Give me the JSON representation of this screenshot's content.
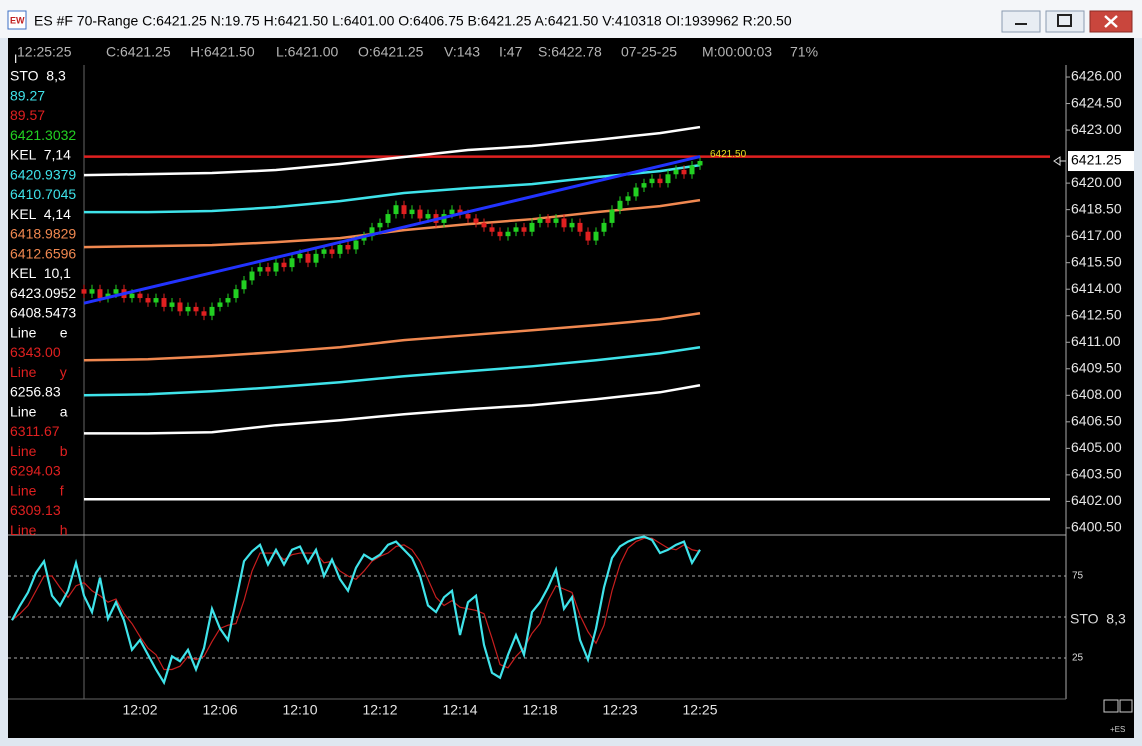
{
  "window": {
    "title": "ES #F 70-Range C:6421.25 N:19.75 H:6421.50 L:6401.00 O:6406.75 B:6421.25 A:6421.50 V:410318 OI:1939962 R:20.50"
  },
  "info_bar": [
    "12:25:25",
    "C:6421.25",
    "H:6421.50",
    "L:6421.00",
    "O:6421.25",
    "V:143",
    "I:47",
    "S:6422.78",
    "07-25-25",
    "M:00:00:03",
    "71%"
  ],
  "indicator_panel": [
    {
      "text": "STO  8,3",
      "color": "#ffffff"
    },
    {
      "text": "89.27",
      "color": "#3fe3ea"
    },
    {
      "text": "89.57",
      "color": "#e02020"
    },
    {
      "text": "6421.3032",
      "color": "#22d022"
    },
    {
      "text": "KEL  7,14",
      "color": "#ffffff"
    },
    {
      "text": "6420.9379",
      "color": "#3fe3ea"
    },
    {
      "text": "6410.7045",
      "color": "#3fe3ea"
    },
    {
      "text": "KEL  4,14",
      "color": "#ffffff"
    },
    {
      "text": "6418.9829",
      "color": "#f08850"
    },
    {
      "text": "6412.6596",
      "color": "#f08850"
    },
    {
      "text": "KEL  10,1",
      "color": "#ffffff"
    },
    {
      "text": "6423.0952",
      "color": "#ffffff"
    },
    {
      "text": "6408.5473",
      "color": "#ffffff"
    },
    {
      "text": "Line      e",
      "color": "#ffffff"
    },
    {
      "text": "6343.00",
      "color": "#e02020"
    },
    {
      "text": "Line      y",
      "color": "#e02020"
    },
    {
      "text": "6256.83",
      "color": "#ffffff"
    },
    {
      "text": "Line      a",
      "color": "#ffffff"
    },
    {
      "text": "6311.67",
      "color": "#e02020"
    },
    {
      "text": "Line      b",
      "color": "#e02020"
    },
    {
      "text": "6294.03",
      "color": "#e02020"
    },
    {
      "text": "Line      f",
      "color": "#e02020"
    },
    {
      "text": "6309.13",
      "color": "#e02020"
    },
    {
      "text": "Line      h",
      "color": "#e02020"
    }
  ],
  "chart_data": [
    {
      "type": "candlestick",
      "categories": [
        null,
        null,
        null,
        null,
        null,
        null,
        null,
        null,
        null,
        null,
        null,
        null,
        null,
        null,
        null,
        null,
        "12:02",
        null,
        null,
        null,
        null,
        null,
        null,
        null,
        null,
        null,
        "12:06",
        null,
        null,
        null,
        null,
        null,
        null,
        null,
        null,
        null,
        "12:10",
        null,
        null,
        null,
        null,
        null,
        null,
        null,
        null,
        null,
        "12:12",
        null,
        null,
        null,
        null,
        null,
        null,
        null,
        null,
        null,
        "12:14",
        null,
        null,
        null,
        null,
        null,
        null,
        null,
        null,
        null,
        "12:18",
        null,
        null,
        null,
        null,
        null,
        null,
        null,
        null,
        null,
        "12:23",
        null,
        null,
        null,
        null,
        null,
        null,
        null,
        null,
        null,
        "12:25"
      ],
      "open": [
        null,
        null,
        null,
        null,
        null,
        null,
        null,
        null,
        null,
        6414.0,
        6413.75,
        6414.0,
        6413.5,
        6413.75,
        6414.0,
        6413.5,
        6413.75,
        6413.5,
        6413.25,
        6413.5,
        6413.0,
        6413.25,
        6412.75,
        6413.0,
        6412.75,
        6412.5,
        6413.0,
        6413.25,
        6413.5,
        6414.0,
        6414.5,
        6415.0,
        6415.25,
        6415.0,
        6415.5,
        6415.25,
        6415.75,
        6416.0,
        6415.5,
        6416.0,
        6416.25,
        6416.0,
        6416.5,
        6416.25,
        6416.75,
        6417.0,
        6417.5,
        6417.75,
        6418.25,
        6418.75,
        6418.25,
        6418.5,
        6418.0,
        6418.25,
        6417.75,
        6418.25,
        6418.5,
        6418.25,
        6418.0,
        6417.75,
        6417.5,
        6417.25,
        6417.0,
        6417.25,
        6417.5,
        6417.25,
        6417.75,
        6418.0,
        6417.75,
        6418.0,
        6417.5,
        6417.75,
        6417.25,
        6416.75,
        6417.25,
        6417.75,
        6418.5,
        6419.0,
        6419.25,
        6419.75,
        6420.0,
        6420.25,
        6420.0,
        6420.5,
        6420.75,
        6420.5,
        6421.0
      ],
      "high": [
        null,
        null,
        null,
        null,
        null,
        null,
        null,
        null,
        null,
        6414.25,
        6414.25,
        6414.25,
        6414.0,
        6414.25,
        6414.25,
        6414.0,
        6414.0,
        6413.75,
        6413.75,
        6413.75,
        6413.5,
        6413.5,
        6413.25,
        6413.25,
        6413.0,
        6413.25,
        6413.5,
        6413.75,
        6414.25,
        6414.75,
        6415.25,
        6415.5,
        6415.5,
        6415.75,
        6415.75,
        6416.0,
        6416.25,
        6416.25,
        6416.25,
        6416.5,
        6416.5,
        6416.75,
        6416.75,
        6417.0,
        6417.25,
        6417.75,
        6418.0,
        6418.5,
        6419.0,
        6419.0,
        6418.75,
        6418.75,
        6418.5,
        6418.5,
        6418.5,
        6418.75,
        6418.75,
        6418.5,
        6418.25,
        6418.0,
        6417.75,
        6417.5,
        6417.5,
        6417.75,
        6417.75,
        6418.0,
        6418.25,
        6418.25,
        6418.25,
        6418.25,
        6418.0,
        6418.0,
        6417.5,
        6417.5,
        6418.0,
        6418.75,
        6419.25,
        6419.5,
        6420.0,
        6420.25,
        6420.5,
        6420.5,
        6420.75,
        6421.0,
        6421.0,
        6421.25,
        6421.5
      ],
      "low": [
        null,
        null,
        null,
        null,
        null,
        null,
        null,
        null,
        null,
        6413.5,
        6413.5,
        6413.25,
        6413.25,
        6413.5,
        6413.25,
        6413.25,
        6413.25,
        6413.0,
        6413.0,
        6412.75,
        6412.75,
        6412.5,
        6412.5,
        6412.5,
        6412.25,
        6412.25,
        6412.75,
        6413.0,
        6413.25,
        6413.75,
        6414.25,
        6414.75,
        6414.75,
        6414.75,
        6415.0,
        6415.0,
        6415.5,
        6415.25,
        6415.25,
        6415.75,
        6415.75,
        6415.75,
        6416.0,
        6416.0,
        6416.5,
        6416.75,
        6417.25,
        6417.5,
        6418.0,
        6418.0,
        6418.0,
        6417.75,
        6417.75,
        6417.5,
        6417.5,
        6418.0,
        6418.0,
        6417.75,
        6417.5,
        6417.25,
        6417.0,
        6416.75,
        6416.75,
        6417.0,
        6417.0,
        6417.0,
        6417.5,
        6417.5,
        6417.5,
        6417.25,
        6417.25,
        6417.0,
        6416.5,
        6416.5,
        6417.0,
        6417.5,
        6418.25,
        6418.75,
        6419.0,
        6419.5,
        6419.75,
        6419.75,
        6419.75,
        6420.25,
        6420.25,
        6420.25,
        6420.75
      ],
      "close": [
        null,
        null,
        null,
        null,
        null,
        null,
        null,
        null,
        null,
        6413.75,
        6414.0,
        6413.5,
        6413.75,
        6414.0,
        6413.5,
        6413.75,
        6413.5,
        6413.25,
        6413.5,
        6413.0,
        6413.25,
        6412.75,
        6413.0,
        6412.75,
        6412.5,
        6413.0,
        6413.25,
        6413.5,
        6414.0,
        6414.5,
        6415.0,
        6415.25,
        6415.0,
        6415.5,
        6415.25,
        6415.75,
        6416.0,
        6415.5,
        6416.0,
        6416.25,
        6416.0,
        6416.5,
        6416.25,
        6416.75,
        6417.0,
        6417.5,
        6417.75,
        6418.25,
        6418.75,
        6418.25,
        6418.5,
        6418.0,
        6418.25,
        6417.75,
        6418.25,
        6418.5,
        6418.25,
        6418.0,
        6417.75,
        6417.5,
        6417.25,
        6417.0,
        6417.25,
        6417.5,
        6417.25,
        6417.75,
        6418.0,
        6417.75,
        6418.0,
        6417.5,
        6417.75,
        6417.25,
        6416.75,
        6417.25,
        6417.75,
        6418.5,
        6419.0,
        6419.25,
        6419.75,
        6420.0,
        6420.25,
        6420.0,
        6420.5,
        6420.75,
        6420.5,
        6421.0,
        6421.25
      ],
      "up_color": "#22d022",
      "down_color": "#e02020",
      "ylim": [
        6400.1,
        6426.68
      ],
      "yticks": [
        {
          "value": 6400.5,
          "label": "6400.50"
        },
        {
          "value": 6402,
          "label": "6402.00"
        },
        {
          "value": 6403.5,
          "label": "6403.50"
        },
        {
          "value": 6405,
          "label": "6405.00"
        },
        {
          "value": 6406.5,
          "label": "6406.50"
        },
        {
          "value": 6408,
          "label": "6408.00"
        },
        {
          "value": 6409.5,
          "label": "6409.50"
        },
        {
          "value": 6411,
          "label": "6411.00"
        },
        {
          "value": 6412.5,
          "label": "6412.50"
        },
        {
          "value": 6414,
          "label": "6414.00"
        },
        {
          "value": 6415.5,
          "label": "6415.50"
        },
        {
          "value": 6417,
          "label": "6417.00"
        },
        {
          "value": 6418.5,
          "label": "6418.50"
        },
        {
          "value": 6420,
          "label": "6420.00"
        },
        {
          "value": 6423,
          "label": "6423.00"
        },
        {
          "value": 6424.5,
          "label": "6424.50"
        },
        {
          "value": 6426,
          "label": "6426.00"
        }
      ],
      "overlays": [
        {
          "color": "#ffffff",
          "x": [
            9,
            17,
            25,
            33,
            41,
            49,
            57,
            65,
            73,
            81,
            86
          ],
          "values": [
            6420.45,
            6420.51,
            6420.57,
            6420.74,
            6421.08,
            6421.48,
            6421.87,
            6422.1,
            6422.44,
            6422.83,
            6423.17
          ]
        },
        {
          "color": "#3fe3ea",
          "x": [
            9,
            17,
            25,
            33,
            41,
            49,
            57,
            65,
            73,
            81,
            86
          ],
          "values": [
            6418.36,
            6418.36,
            6418.42,
            6418.64,
            6418.98,
            6419.44,
            6419.72,
            6419.94,
            6420.34,
            6420.68,
            6421.02
          ]
        },
        {
          "color": "#f08850",
          "x": [
            9,
            17,
            25,
            33,
            41,
            49,
            57,
            65,
            73,
            81,
            86
          ],
          "values": [
            6416.38,
            6416.44,
            6416.49,
            6416.66,
            6416.89,
            6417.34,
            6417.68,
            6417.96,
            6418.36,
            6418.7,
            6419.04
          ]
        },
        {
          "color": "#f08850",
          "x": [
            9,
            17,
            25,
            33,
            41,
            49,
            57,
            65,
            73,
            81,
            86
          ],
          "values": [
            6409.98,
            6410.04,
            6410.21,
            6410.44,
            6410.72,
            6411.12,
            6411.4,
            6411.68,
            6411.97,
            6412.3,
            6412.64
          ]
        },
        {
          "color": "#3fe3ea",
          "x": [
            9,
            17,
            25,
            33,
            41,
            49,
            57,
            65,
            73,
            81,
            86
          ],
          "values": [
            6408.0,
            6408.06,
            6408.23,
            6408.46,
            6408.74,
            6409.08,
            6409.36,
            6409.64,
            6409.98,
            6410.38,
            6410.72
          ]
        },
        {
          "color": "#ffffff",
          "x": [
            9,
            17,
            25,
            33,
            41,
            49,
            57,
            65,
            73,
            81,
            86
          ],
          "values": [
            6405.85,
            6405.85,
            6405.91,
            6406.31,
            6406.59,
            6406.93,
            6407.21,
            6407.44,
            6407.78,
            6408.17,
            6408.57
          ]
        }
      ],
      "hlines": [
        {
          "value": 6421.5,
          "color": "#e02020",
          "label": "6421.50",
          "label_color": "#e8e020"
        },
        {
          "value": 6402.12,
          "color": "#ffffff"
        }
      ],
      "trendline": {
        "color": "#2233ff",
        "x": [
          9,
          86
        ],
        "values": [
          6413.21,
          6421.5
        ]
      },
      "last_price": 6421.25
    },
    {
      "type": "line",
      "axis_label": "STO  8,3",
      "ylim": [
        0,
        100
      ],
      "yticks": [
        25,
        75
      ],
      "hlines": [
        50
      ],
      "series": [
        {
          "color": "#3fe3ea",
          "values": [
            48,
            57,
            65,
            77,
            84,
            63,
            57,
            66,
            83,
            63,
            53,
            74,
            49,
            59,
            48,
            30,
            36,
            27,
            18,
            10,
            26,
            23,
            30,
            18,
            31,
            55,
            43,
            36,
            60,
            84,
            90,
            94,
            82,
            91,
            82,
            91,
            93,
            83,
            91,
            75,
            85,
            73,
            66,
            80,
            88,
            85,
            88,
            94,
            96,
            91,
            86,
            75,
            57,
            53,
            62,
            66,
            39,
            59,
            63,
            33,
            16,
            13,
            27,
            39,
            27,
            53,
            59,
            68,
            79,
            55,
            62,
            36,
            24,
            43,
            68,
            86,
            93,
            96,
            98,
            99,
            97,
            89,
            91,
            94,
            96,
            83,
            91
          ]
        },
        {
          "color": "#c81e1e",
          "values": [
            48,
            52,
            57,
            66,
            75,
            75,
            68,
            62,
            69,
            71,
            66,
            63,
            59,
            61,
            52,
            46,
            38,
            31,
            27,
            18,
            18,
            20,
            26,
            24,
            26,
            35,
            43,
            45,
            46,
            60,
            78,
            89,
            89,
            89,
            85,
            88,
            89,
            89,
            89,
            83,
            84,
            78,
            75,
            73,
            78,
            84,
            87,
            89,
            93,
            94,
            91,
            84,
            73,
            62,
            57,
            60,
            56,
            55,
            54,
            52,
            37,
            21,
            19,
            26,
            31,
            40,
            46,
            60,
            69,
            67,
            65,
            51,
            41,
            34,
            45,
            66,
            82,
            92,
            96,
            98,
            98,
            95,
            92,
            91,
            94,
            91,
            90
          ]
        }
      ]
    }
  ]
}
